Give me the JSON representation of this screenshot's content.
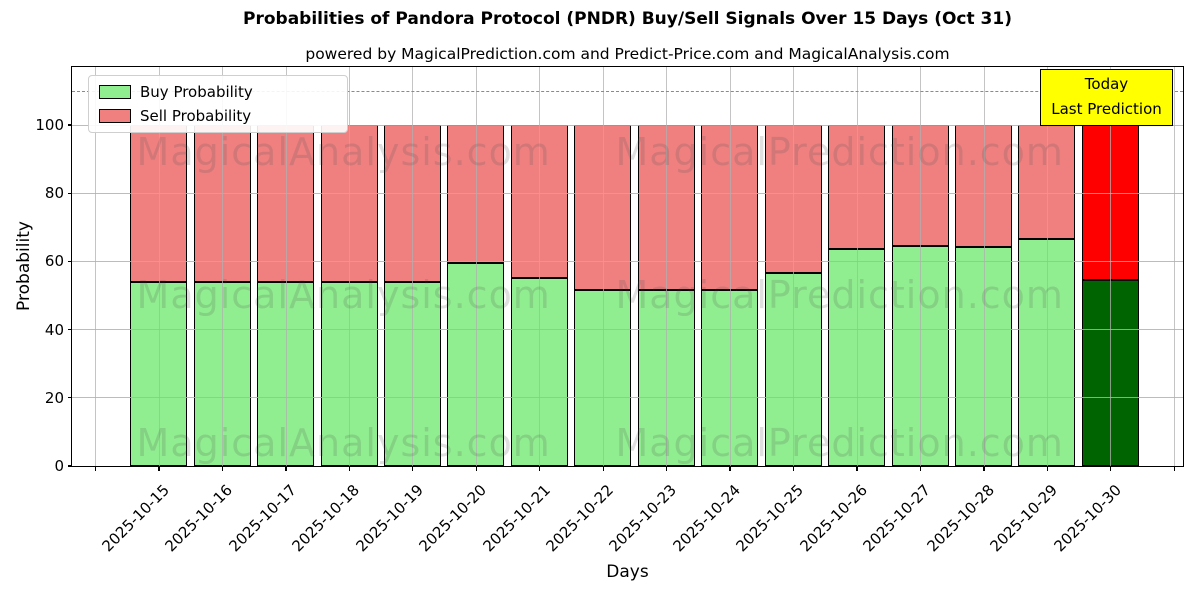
{
  "figure": {
    "title": "Probabilities of Pandora Protocol (PNDR) Buy/Sell Signals Over 15 Days (Oct 31)",
    "subtitle": "powered by MagicalPrediction.com and Predict-Price.com and MagicalAnalysis.com",
    "xlabel": "Days",
    "ylabel": "Probability"
  },
  "legend": {
    "items": [
      {
        "label": "Buy Probability",
        "color": "#90EE90"
      },
      {
        "label": "Sell Probability",
        "color": "#F08080"
      }
    ]
  },
  "annotation": {
    "line1": "Today",
    "line2": "Last Prediction",
    "bg": "#FFFF00"
  },
  "watermarks": {
    "left": "MagicalAnalysis.com",
    "right": "MagicalPrediction.com"
  },
  "colors": {
    "buy": "#90EE90",
    "sell": "#F08080",
    "today_buy": "#006400",
    "today_sell": "#FF0000",
    "grid": "#b0b0b0",
    "dashed": "#8a8a8a"
  },
  "chart_data": {
    "type": "bar",
    "stacked": true,
    "title": "Probabilities of Pandora Protocol (PNDR) Buy/Sell Signals Over 15 Days (Oct 31)",
    "xlabel": "Days",
    "ylabel": "Probability",
    "categories": [
      "2025-10-15",
      "2025-10-16",
      "2025-10-17",
      "2025-10-18",
      "2025-10-19",
      "2025-10-20",
      "2025-10-21",
      "2025-10-22",
      "2025-10-23",
      "2025-10-24",
      "2025-10-25",
      "2025-10-26",
      "2025-10-27",
      "2025-10-28",
      "2025-10-29",
      "2025-10-30"
    ],
    "series": [
      {
        "name": "Buy Probability",
        "values": [
          54,
          54,
          54,
          54,
          54,
          59.5,
          55,
          51.5,
          51.5,
          51.5,
          56.5,
          63.5,
          64.5,
          64,
          66.5,
          54.5
        ]
      },
      {
        "name": "Sell Probability",
        "values": [
          46,
          46,
          46,
          46,
          46,
          40.5,
          45,
          48.5,
          48.5,
          48.5,
          43.5,
          36.5,
          35.5,
          36,
          33.5,
          45.5
        ]
      }
    ],
    "today_index": 15,
    "yticks": [
      0,
      20,
      40,
      60,
      80,
      100
    ],
    "ylim": [
      0,
      117
    ],
    "dashed_line_y": 110,
    "grid": true,
    "legend_position": "upper left"
  }
}
